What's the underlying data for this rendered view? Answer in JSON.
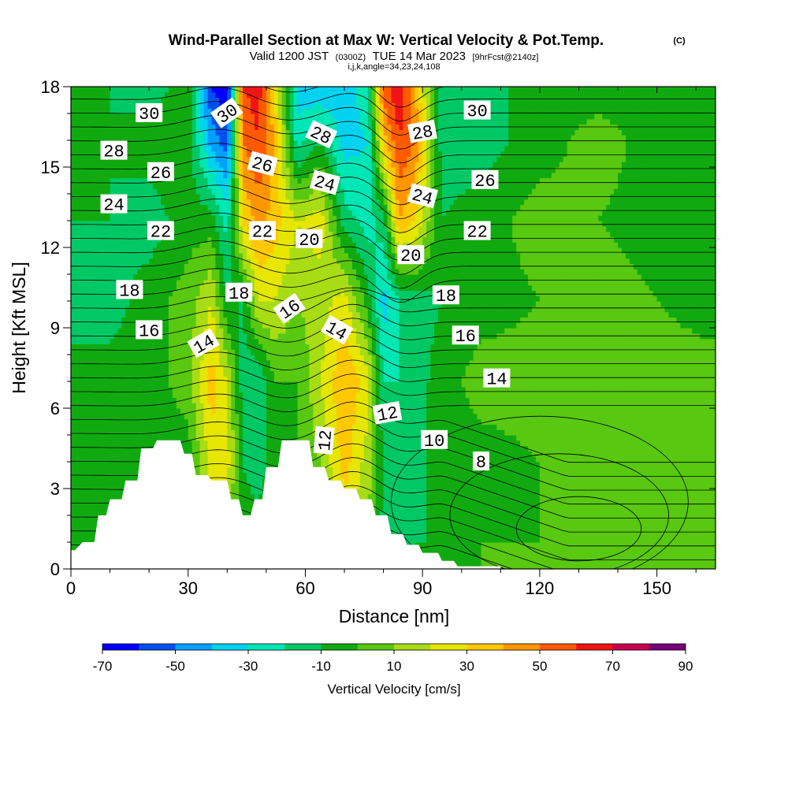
{
  "header": {
    "title": "Wind-Parallel Section at Max W: Vertical Velocity & Pot.Temp.",
    "copyright": "(C)",
    "valid_pre": "Valid 1200 JST",
    "valid_zulu": "(0300Z)",
    "valid_date": "TUE 14 Mar 2023",
    "forecast": "[9hrFcst@2140z]",
    "indices": "i,j,k,angle=34,23,24,108"
  },
  "chart_data": {
    "type": "heatmap",
    "xlabel": "Distance [nm]",
    "ylabel": "Height [Kft MSL]",
    "xlim": [
      0,
      165
    ],
    "ylim": [
      0,
      18
    ],
    "xticks": [
      0,
      30,
      60,
      90,
      120,
      150
    ],
    "yticks": [
      0,
      3,
      6,
      9,
      12,
      15,
      18
    ],
    "colorbar": {
      "label": "Vertical Velocity [cm/s]",
      "ticks": [
        "-70",
        "-50",
        "-30",
        "-10",
        "10",
        "30",
        "50",
        "70",
        "90"
      ],
      "bins": [
        -70,
        -60,
        -50,
        -40,
        -30,
        -20,
        -10,
        0,
        10,
        20,
        30,
        40,
        50,
        60,
        70,
        80,
        90
      ],
      "colors": [
        "#0000ff",
        "#0050f0",
        "#00a0ff",
        "#00d2f0",
        "#00e6b4",
        "#00c864",
        "#10aa10",
        "#58c810",
        "#a8dc14",
        "#e6e600",
        "#ffc800",
        "#ff9600",
        "#ff5a00",
        "#f01414",
        "#c80050",
        "#780078"
      ]
    },
    "vertical_velocity_columns": [
      {
        "x": 0,
        "w": [
          -5,
          -5,
          -5,
          -15,
          -10,
          -5,
          -5
        ]
      },
      {
        "x": 10,
        "w": [
          -5,
          -5,
          -5,
          -15,
          -10,
          -10,
          -10
        ]
      },
      {
        "x": 20,
        "w": [
          -5,
          -5,
          -5,
          -5,
          -15,
          -5,
          -15
        ]
      },
      {
        "x": 30,
        "w": [
          0,
          -5,
          5,
          5,
          -5,
          -5,
          -5
        ]
      },
      {
        "x": 36,
        "w": [
          20,
          25,
          35,
          20,
          -5,
          -45,
          -60
        ]
      },
      {
        "x": 40,
        "w": [
          10,
          25,
          20,
          -10,
          -25,
          -55,
          -70
        ]
      },
      {
        "x": 44,
        "w": [
          -5,
          -10,
          -15,
          -10,
          30,
          50,
          60
        ]
      },
      {
        "x": 48,
        "w": [
          -5,
          -15,
          -20,
          20,
          45,
          60,
          65
        ]
      },
      {
        "x": 52,
        "w": [
          -5,
          -5,
          0,
          20,
          35,
          40,
          30
        ]
      },
      {
        "x": 58,
        "w": [
          -5,
          0,
          0,
          10,
          20,
          -25,
          -35
        ]
      },
      {
        "x": 64,
        "w": [
          5,
          10,
          20,
          15,
          25,
          -10,
          -40
        ]
      },
      {
        "x": 70,
        "w": [
          20,
          35,
          40,
          25,
          -15,
          -35,
          -40
        ]
      },
      {
        "x": 76,
        "w": [
          10,
          15,
          25,
          -5,
          -25,
          -30,
          -20
        ]
      },
      {
        "x": 80,
        "w": [
          -15,
          -10,
          -20,
          -35,
          -15,
          35,
          55
        ]
      },
      {
        "x": 84,
        "w": [
          -15,
          -15,
          -20,
          -20,
          40,
          60,
          70
        ]
      },
      {
        "x": 88,
        "w": [
          -10,
          -15,
          -15,
          -15,
          30,
          50,
          40
        ]
      },
      {
        "x": 95,
        "w": [
          -10,
          -5,
          -5,
          -10,
          -10,
          -15,
          -20
        ]
      },
      {
        "x": 105,
        "w": [
          0,
          -5,
          5,
          -5,
          -5,
          -15,
          -15
        ]
      },
      {
        "x": 120,
        "w": [
          0,
          0,
          5,
          0,
          5,
          -5,
          -5
        ]
      },
      {
        "x": 135,
        "w": [
          5,
          5,
          5,
          5,
          0,
          5,
          -5
        ]
      },
      {
        "x": 150,
        "w": [
          5,
          0,
          5,
          0,
          -5,
          -5,
          -5
        ]
      },
      {
        "x": 165,
        "w": [
          0,
          0,
          5,
          -5,
          -5,
          -5,
          -5
        ]
      }
    ],
    "w_levels_kft": [
      1,
      4,
      7,
      10,
      13,
      16,
      18
    ],
    "potential_temperature_labels": [
      "30",
      "28",
      "26",
      "24",
      "22",
      "18",
      "16",
      "14",
      "30",
      "26",
      "22",
      "18",
      "16",
      "12",
      "28",
      "24",
      "20",
      "14",
      "30",
      "28",
      "26",
      "24",
      "22",
      "20",
      "18",
      "16",
      "14",
      "12",
      "10",
      "8"
    ],
    "terrain_profile": [
      [
        0,
        0.7
      ],
      [
        1,
        0.7
      ],
      [
        3,
        1
      ],
      [
        6,
        1
      ],
      [
        7,
        2
      ],
      [
        9,
        2
      ],
      [
        10,
        2.6
      ],
      [
        13,
        2.6
      ],
      [
        14,
        3.3
      ],
      [
        17,
        3.3
      ],
      [
        18,
        4.5
      ],
      [
        21,
        4.5
      ],
      [
        22,
        4.8
      ],
      [
        28,
        4.8
      ],
      [
        29,
        4.3
      ],
      [
        31,
        4.3
      ],
      [
        32,
        3.5
      ],
      [
        35,
        3.5
      ],
      [
        36,
        3.3
      ],
      [
        40,
        3.3
      ],
      [
        41,
        2.6
      ],
      [
        43,
        2.6
      ],
      [
        44,
        2
      ],
      [
        46,
        2
      ],
      [
        47,
        2.6
      ],
      [
        49,
        2.6
      ],
      [
        50,
        3.8
      ],
      [
        53,
        3.8
      ],
      [
        54,
        4.8
      ],
      [
        61,
        4.8
      ],
      [
        62,
        3.8
      ],
      [
        65,
        3.8
      ],
      [
        66,
        3.3
      ],
      [
        69,
        3.3
      ],
      [
        70,
        3
      ],
      [
        73,
        3
      ],
      [
        74,
        2.6
      ],
      [
        77,
        2.6
      ],
      [
        78,
        2
      ],
      [
        81,
        2
      ],
      [
        82,
        1.3
      ],
      [
        85,
        1.3
      ],
      [
        86,
        0.9
      ],
      [
        89,
        0.9
      ],
      [
        90,
        0.6
      ],
      [
        94,
        0.6
      ],
      [
        95,
        0.3
      ],
      [
        98,
        0.3
      ],
      [
        99,
        0.1
      ],
      [
        110,
        0.1
      ]
    ]
  }
}
